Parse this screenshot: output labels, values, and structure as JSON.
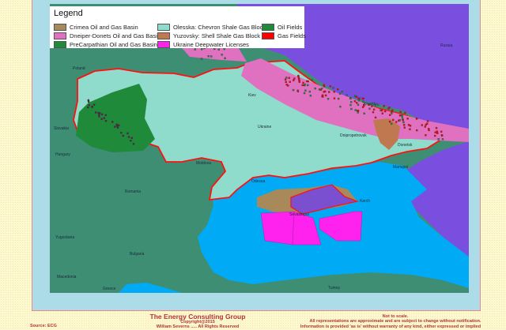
{
  "legend": {
    "title": "Legend",
    "items": [
      {
        "label": "Crimea Oil and Gas Basin",
        "color": "#a88a5a"
      },
      {
        "label": "Dneiper-Donets Oil and Gas Basin",
        "color": "#e070c0"
      },
      {
        "label": "PreCarpathian Oil and Gas Basin",
        "color": "#1f8a3a"
      },
      {
        "label": "Olesska:  Chevron Shale Gas Block",
        "color": "#8fdccc"
      },
      {
        "label": "Yuzovsky:  Shell Shale Gas Block",
        "color": "#c07850"
      },
      {
        "label": "Ukraine Deepwater Licenses",
        "color": "#ff22ee"
      },
      {
        "label": "Oil Fields",
        "color": "#1f8a3a"
      },
      {
        "label": "Gas Fields",
        "color": "#ff0000"
      }
    ]
  },
  "map_labels": {
    "poland": "Poland",
    "slovakia": "Slovakia",
    "hungary": "Hungary",
    "moldova": "Moldova",
    "romania": "Romania",
    "yugoslavia": "Yugoslavia",
    "bulgaria": "Bulgaria",
    "macedonia": "Macedonia",
    "greece": "Greece",
    "turkey": "Turkey",
    "russia": "Russia",
    "ukraine": "Ukraine",
    "kiev": "Kiev",
    "kharkiv": "Kharkiv",
    "dnipropetrovsk": "Dnipropetrovsk",
    "donetsk": "Donetsk",
    "mariupol": "Mariupol",
    "odessa": "Odessa",
    "sevastopol": "Sevastopol",
    "kerch": "Kerch"
  },
  "colors": {
    "land": "#3e8e74",
    "russia": "#7a4fe0",
    "sea": "#00aaf5",
    "ukraine": "#8fdccc",
    "border": "#ff1010"
  },
  "footer": {
    "company": "The Energy Consulting Group",
    "copyright": "Copyright@2015",
    "rights": "William Severns ..... All Rights Reserved",
    "source": "Source: ECG",
    "scale_note": "Not to scale.",
    "disclaimer1": "All representations are approximate and are subject to change without notification.",
    "disclaimer2": "Information is provided 'as is' without warranty of any kind, either expressed or implied"
  }
}
